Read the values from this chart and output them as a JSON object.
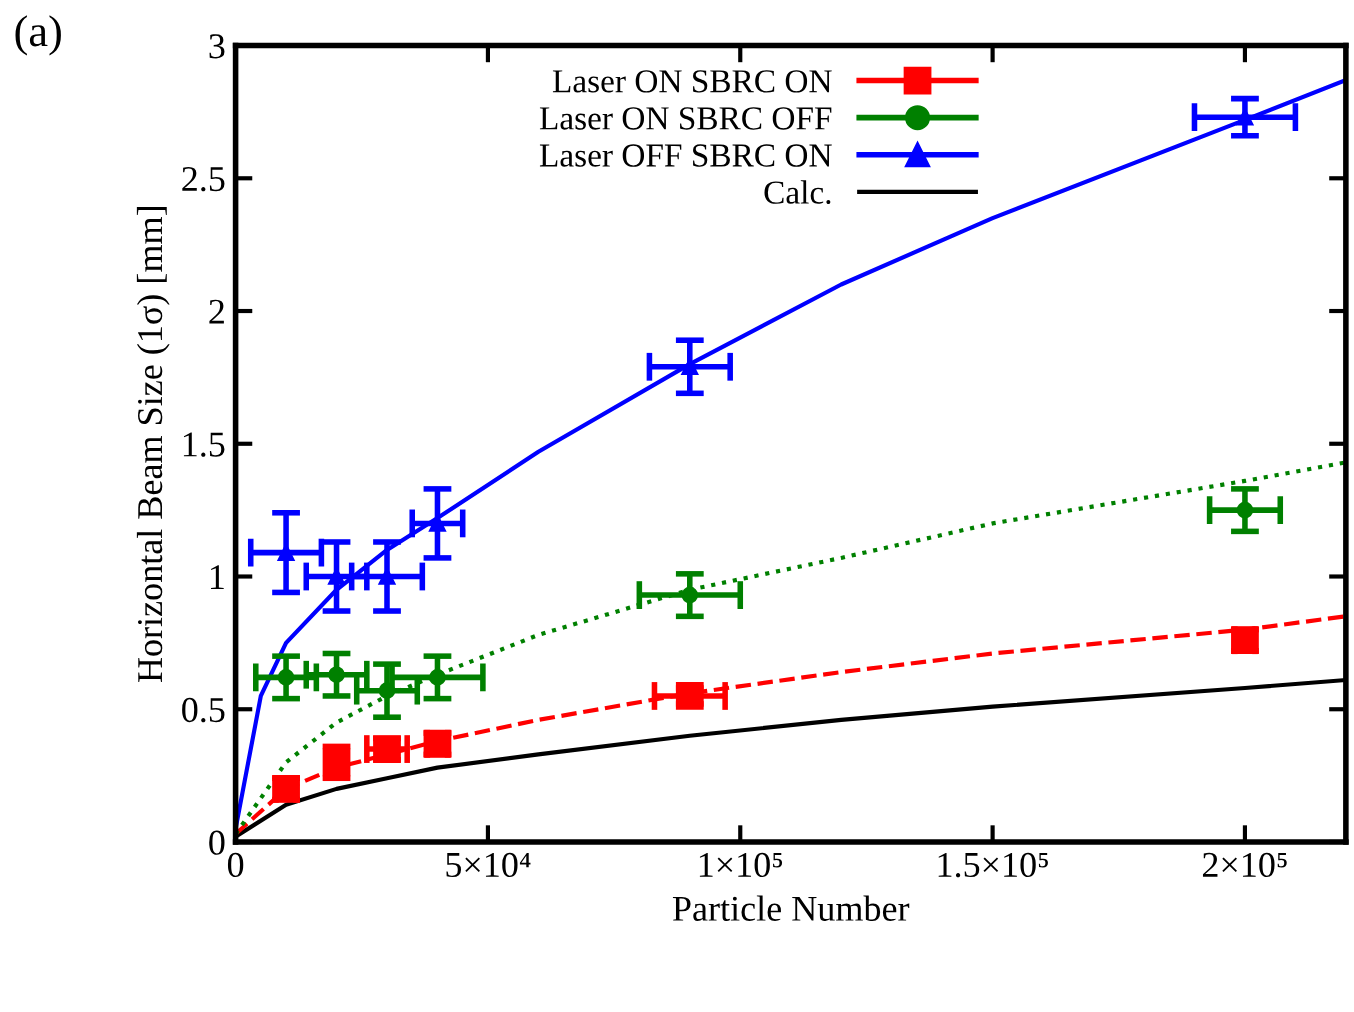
{
  "chart_data": {
    "type": "scatter",
    "xlabel": "Particle Number",
    "ylabel": "Horizontal Beam Size (1σ) [mm]",
    "annotations": [
      "(a)"
    ],
    "xlim": [
      0,
      220000
    ],
    "ylim": [
      0,
      3
    ],
    "xticks": [
      0,
      {
        "value": 50000,
        "label": "5×10⁴"
      },
      {
        "value": 100000,
        "label": "1×10⁵"
      },
      {
        "value": 150000,
        "label": "1.5×10⁵"
      },
      {
        "value": 200000,
        "label": "2×10⁵"
      }
    ],
    "yticks": [
      0,
      0.5,
      1,
      1.5,
      2,
      2.5,
      3
    ],
    "grid": false,
    "legend": "top",
    "series": [
      {
        "name": "Laser ON SBRC ON",
        "marker": "square",
        "color": "#ff0000",
        "x": [
          10000,
          20000,
          30000,
          40000,
          90000,
          200000
        ],
        "values": [
          0.2,
          0.3,
          0.35,
          0.37,
          0.55,
          0.76
        ],
        "errors": [
          0.04,
          0.06,
          0.04,
          0.04,
          0.03,
          0.04
        ],
        "xerrors": [
          2000,
          2000,
          4000,
          2000,
          7000,
          2000
        ]
      },
      {
        "name": "Laser ON SBRC OFF",
        "marker": "circle",
        "color": "#008000",
        "x": [
          10000,
          20000,
          30000,
          40000,
          90000,
          200000
        ],
        "values": [
          0.62,
          0.63,
          0.57,
          0.62,
          0.93,
          1.25
        ],
        "errors": [
          0.08,
          0.08,
          0.1,
          0.08,
          0.08,
          0.08
        ],
        "xerrors": [
          6000,
          6000,
          6000,
          9000,
          10000,
          7000
        ]
      },
      {
        "name": "Laser OFF SBRC ON",
        "marker": "triangle",
        "color": "#0000ff",
        "x": [
          10000,
          20000,
          30000,
          40000,
          90000,
          200000
        ],
        "values": [
          1.09,
          1.0,
          1.0,
          1.2,
          1.79,
          2.73
        ],
        "errors": [
          0.15,
          0.13,
          0.13,
          0.13,
          0.1,
          0.07
        ],
        "xerrors": [
          7000,
          6000,
          7000,
          5000,
          8000,
          10000
        ]
      },
      {
        "name": "Calc.",
        "type": "line",
        "color": "#000000",
        "line_style": "solid",
        "x": [
          0,
          10000,
          20000,
          30000,
          40000,
          60000,
          90000,
          120000,
          150000,
          200000,
          220000
        ],
        "values": [
          0.02,
          0.14,
          0.2,
          0.24,
          0.28,
          0.33,
          0.4,
          0.46,
          0.51,
          0.58,
          0.61
        ]
      },
      {
        "type": "line",
        "color": "#ff0000",
        "line_style": "dashed",
        "x": [
          0,
          10000,
          20000,
          30000,
          40000,
          60000,
          90000,
          120000,
          150000,
          200000,
          220000
        ],
        "values": [
          0.03,
          0.2,
          0.28,
          0.33,
          0.38,
          0.46,
          0.56,
          0.64,
          0.71,
          0.8,
          0.85
        ]
      },
      {
        "type": "line",
        "color": "#008000",
        "line_style": "dotted",
        "x": [
          0,
          10000,
          20000,
          30000,
          40000,
          60000,
          90000,
          120000,
          150000,
          200000,
          220000
        ],
        "values": [
          0.03,
          0.3,
          0.45,
          0.55,
          0.63,
          0.78,
          0.95,
          1.07,
          1.2,
          1.36,
          1.43
        ]
      },
      {
        "type": "line",
        "color": "#0000ff",
        "line_style": "solid",
        "x": [
          0,
          5000,
          10000,
          20000,
          30000,
          40000,
          60000,
          90000,
          120000,
          150000,
          200000,
          220000
        ],
        "values": [
          0.05,
          0.55,
          0.75,
          0.95,
          1.1,
          1.22,
          1.47,
          1.8,
          2.1,
          2.35,
          2.72,
          2.87
        ]
      }
    ]
  }
}
